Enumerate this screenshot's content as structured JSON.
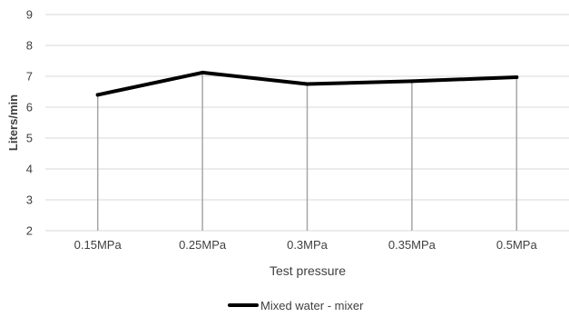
{
  "chart_data": {
    "type": "line",
    "categories": [
      "0.15MPa",
      "0.25MPa",
      "0.3MPa",
      "0.35MPa",
      "0.5MPa"
    ],
    "series": [
      {
        "name": "Mixed water - mixer",
        "values": [
          6.4,
          7.12,
          6.75,
          6.84,
          6.97
        ],
        "color": "#000000"
      }
    ],
    "title": "",
    "xlabel": "Test pressure",
    "ylabel": "Liters/min",
    "ylim": [
      2,
      9
    ],
    "yticks": [
      2,
      3,
      4,
      5,
      6,
      7,
      8,
      9
    ],
    "grid": "horizontal",
    "drop_lines": true,
    "legend_position": "bottom"
  }
}
